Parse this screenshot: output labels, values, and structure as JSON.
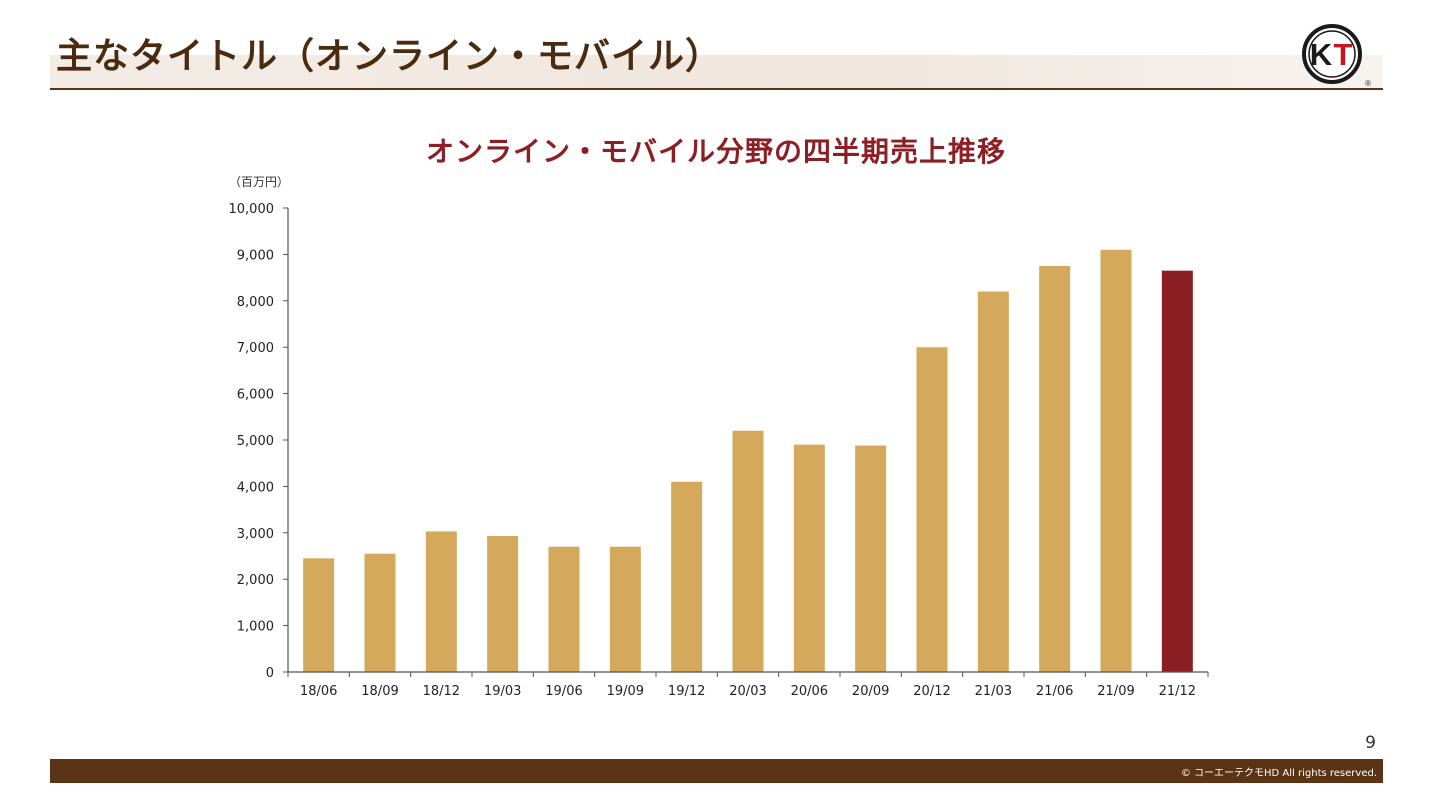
{
  "slide": {
    "title": "主なタイトル（オンライン・モバイル）",
    "page_number": "9",
    "copyright": "© コーエーテクモHD All rights reserved.",
    "logo_text": "KT",
    "logo_mark": "®"
  },
  "colors": {
    "bar_default": "#d5a95b",
    "bar_highlight": "#8c1f24",
    "title_text": "#4a2b10",
    "chart_title": "#8c1f24",
    "footer": "#5a3414"
  },
  "chart_data": {
    "type": "bar",
    "title": "オンライン・モバイル分野の四半期売上推移",
    "unit_label": "（百万円）",
    "categories": [
      "18/06",
      "18/09",
      "18/12",
      "19/03",
      "19/06",
      "19/09",
      "19/12",
      "20/03",
      "20/06",
      "20/09",
      "20/12",
      "21/03",
      "21/06",
      "21/09",
      "21/12"
    ],
    "values": [
      2450,
      2550,
      3030,
      2930,
      2700,
      2700,
      4100,
      5200,
      4900,
      4880,
      7000,
      8200,
      8750,
      9100,
      8650
    ],
    "highlight_index": 14,
    "ylim": [
      0,
      10000
    ],
    "yticks": [
      0,
      1000,
      2000,
      3000,
      4000,
      5000,
      6000,
      7000,
      8000,
      9000,
      10000
    ],
    "ytick_labels": [
      "0",
      "1,000",
      "2,000",
      "3,000",
      "4,000",
      "5,000",
      "6,000",
      "7,000",
      "8,000",
      "9,000",
      "10,000"
    ],
    "grid": false,
    "legend": "none"
  }
}
